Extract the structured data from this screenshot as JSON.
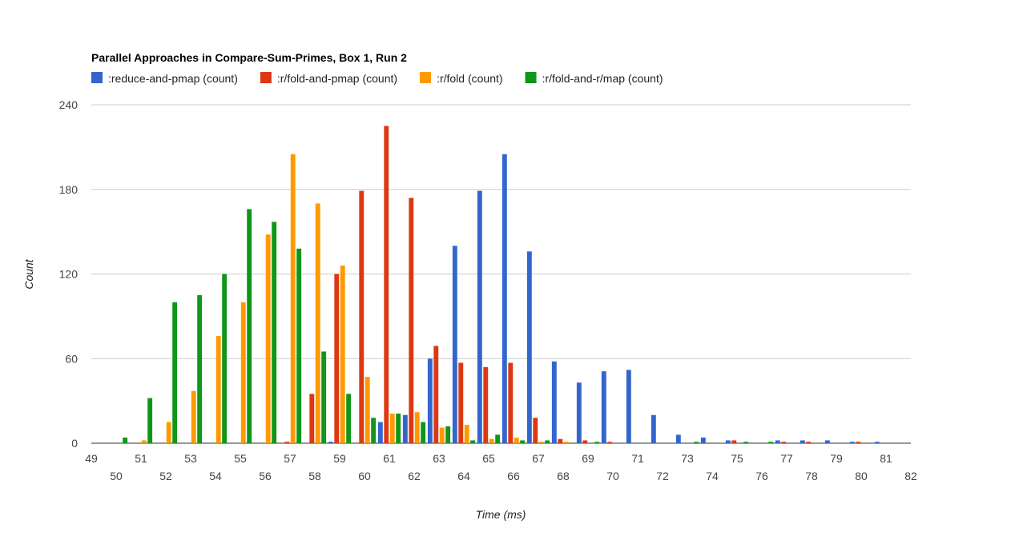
{
  "chart_data": {
    "type": "bar",
    "title": "Parallel Approaches in Compare-Sum-Primes, Box 1, Run 2",
    "xlabel": "Time (ms)",
    "ylabel": "Count",
    "xlim": [
      49,
      82
    ],
    "ylim": [
      0,
      240
    ],
    "yticks": [
      "0",
      "60",
      "120",
      "180",
      "240"
    ],
    "xticks_upper": [
      "49",
      "51",
      "53",
      "55",
      "57",
      "59",
      "61",
      "63",
      "65",
      "67",
      "69",
      "71",
      "73",
      "75",
      "77",
      "79",
      "81"
    ],
    "xticks_lower": [
      "50",
      "52",
      "54",
      "56",
      "58",
      "60",
      "62",
      "64",
      "66",
      "68",
      "70",
      "72",
      "74",
      "76",
      "78",
      "80",
      "82"
    ],
    "grid": true,
    "legend_position": "top",
    "categories": [
      50,
      51,
      52,
      53,
      54,
      55,
      56,
      57,
      58,
      59,
      60,
      61,
      62,
      63,
      64,
      65,
      66,
      67,
      68,
      69,
      70,
      71,
      72,
      73,
      74,
      75,
      76,
      77,
      78,
      79,
      80,
      81
    ],
    "series": [
      {
        "name": ":reduce-and-pmap (count)",
        "color": "#3366cc",
        "values": [
          0,
          0,
          0,
          0,
          0,
          0,
          0,
          0,
          0,
          1,
          0,
          15,
          20,
          60,
          140,
          179,
          205,
          136,
          58,
          43,
          51,
          52,
          20,
          6,
          4,
          2,
          0,
          2,
          2,
          2,
          1,
          1
        ]
      },
      {
        "name": ":r/fold-and-pmap (count)",
        "color": "#dc3912",
        "values": [
          0,
          0,
          0,
          0,
          0,
          0,
          0,
          1,
          35,
          120,
          179,
          225,
          174,
          69,
          57,
          54,
          57,
          18,
          3,
          2,
          1,
          0,
          0,
          0,
          0,
          2,
          0,
          1,
          1,
          0,
          1,
          0
        ]
      },
      {
        "name": ":r/fold (count)",
        "color": "#ff9900",
        "values": [
          0,
          2,
          15,
          37,
          76,
          100,
          148,
          205,
          170,
          126,
          47,
          21,
          22,
          11,
          13,
          3,
          4,
          1,
          1,
          0,
          0,
          0,
          0,
          0,
          0,
          0,
          0,
          0,
          0,
          0,
          0,
          0
        ]
      },
      {
        "name": ":r/fold-and-r/map (count)",
        "color": "#109618",
        "values": [
          4,
          32,
          100,
          105,
          120,
          166,
          157,
          138,
          65,
          35,
          18,
          21,
          15,
          12,
          2,
          6,
          2,
          2,
          0,
          1,
          0,
          0,
          0,
          1,
          0,
          1,
          1,
          0,
          0,
          0,
          0,
          0
        ]
      }
    ]
  }
}
